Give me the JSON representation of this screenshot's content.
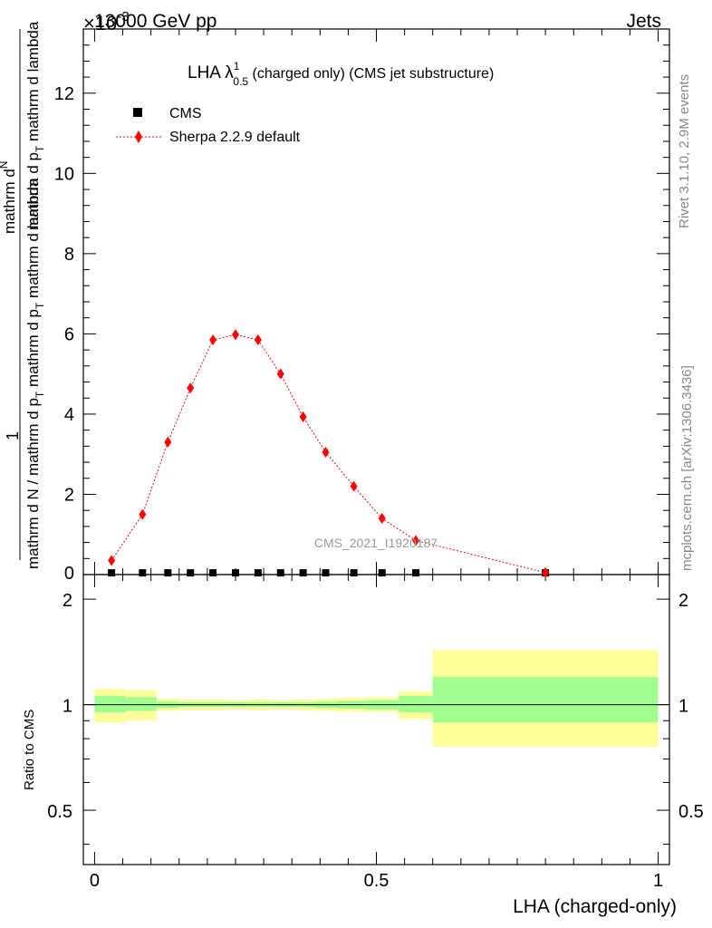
{
  "header": {
    "energy_label": "13000 GeV pp",
    "process_label": "Jets",
    "exponent_label": "×10",
    "exponent_power": "-3"
  },
  "side_labels": {
    "rivet": "Rivet 3.1.10,  2.9M events",
    "mcplots": "mcplots.cern.ch [arXiv:1306.3436]"
  },
  "watermark": "CMS_2021_I1920187",
  "title": {
    "main": "LHA λ",
    "sup": "1",
    "sub": "0.5",
    "rest": " (charged only) (CMS jet substructure)"
  },
  "y_axis_label": {
    "top_numerator": "mathrm d",
    "top_numerator_n": "N",
    "top_den_a": "mathrm d p",
    "top_den_sub": "T",
    "top_den_b": " mathrm d lambda",
    "one": "1",
    "bottom_a": "mathrm d N / mathrm d p",
    "bottom_sub": "T",
    "bottom_b": " mathrm d p",
    "bottom_sub2": "T",
    "bottom_c": " mathrm d lambda"
  },
  "ratio_ylabel": "Ratio to CMS",
  "legend": {
    "cms": "CMS",
    "sherpa": "Sherpa 2.2.9 default"
  },
  "colors": {
    "mc": "#ff0000",
    "band_stat": "#a0ff8f",
    "band_total": "#ffff9a",
    "data": "#000000"
  },
  "chart_data": [
    {
      "type": "scatter",
      "title": "LHA λ^1_0.5 (charged only) (CMS jet substructure)",
      "xlabel": "LHA (charged-only)",
      "ylabel": "1/(dN/dpT) d²N/(dpT dλ)",
      "y_scale_factor": 0.001,
      "xlim": [
        -0.02,
        1.02
      ],
      "ylim": [
        0,
        13.6
      ],
      "yticks": [
        2,
        4,
        6,
        8,
        10,
        12
      ],
      "legend_position": "top-left",
      "series": [
        {
          "name": "CMS",
          "marker": "square",
          "x": [
            0.03,
            0.085,
            0.13,
            0.17,
            0.21,
            0.25,
            0.29,
            0.33,
            0.37,
            0.41,
            0.46,
            0.51,
            0.57,
            0.8
          ],
          "y": [
            0.02,
            0.02,
            0.02,
            0.02,
            0.02,
            0.02,
            0.02,
            0.02,
            0.02,
            0.02,
            0.02,
            0.02,
            0.02,
            0.02
          ]
        },
        {
          "name": "Sherpa 2.2.9 default",
          "marker": "diamond",
          "line": "dotted",
          "x": [
            0.03,
            0.085,
            0.13,
            0.17,
            0.21,
            0.25,
            0.29,
            0.33,
            0.37,
            0.41,
            0.46,
            0.51,
            0.57,
            0.8
          ],
          "y": [
            0.35,
            1.5,
            3.3,
            4.65,
            5.85,
            5.98,
            5.85,
            5.0,
            3.93,
            3.05,
            2.2,
            1.4,
            0.85,
            0.05
          ]
        }
      ]
    },
    {
      "type": "area",
      "ylabel": "Ratio to CMS",
      "xlabel": "LHA (charged-only)",
      "xlim": [
        -0.02,
        1.02
      ],
      "ylim": [
        0.35,
        2.35
      ],
      "xticks": [
        0,
        0.5,
        1
      ],
      "xticklabels": [
        "0",
        "0.5",
        "1"
      ],
      "yticks": [
        0.5,
        1,
        2
      ],
      "yticklabels": [
        "0.5",
        "1",
        "2"
      ],
      "reference_line": 1,
      "bins": [
        {
          "x0": 0.0,
          "x1": 0.055,
          "stat": [
            0.95,
            1.06
          ],
          "total": [
            0.89,
            1.11
          ]
        },
        {
          "x0": 0.055,
          "x1": 0.11,
          "stat": [
            0.96,
            1.05
          ],
          "total": [
            0.9,
            1.1
          ]
        },
        {
          "x0": 0.11,
          "x1": 0.15,
          "stat": [
            0.98,
            1.02
          ],
          "total": [
            0.96,
            1.04
          ]
        },
        {
          "x0": 0.15,
          "x1": 0.19,
          "stat": [
            0.985,
            1.015
          ],
          "total": [
            0.965,
            1.035
          ]
        },
        {
          "x0": 0.19,
          "x1": 0.23,
          "stat": [
            0.985,
            1.015
          ],
          "total": [
            0.965,
            1.035
          ]
        },
        {
          "x0": 0.23,
          "x1": 0.27,
          "stat": [
            0.985,
            1.015
          ],
          "total": [
            0.97,
            1.03
          ]
        },
        {
          "x0": 0.27,
          "x1": 0.31,
          "stat": [
            0.985,
            1.015
          ],
          "total": [
            0.965,
            1.035
          ]
        },
        {
          "x0": 0.31,
          "x1": 0.35,
          "stat": [
            0.985,
            1.015
          ],
          "total": [
            0.97,
            1.03
          ]
        },
        {
          "x0": 0.35,
          "x1": 0.39,
          "stat": [
            0.985,
            1.015
          ],
          "total": [
            0.965,
            1.035
          ]
        },
        {
          "x0": 0.39,
          "x1": 0.43,
          "stat": [
            0.98,
            1.02
          ],
          "total": [
            0.96,
            1.04
          ]
        },
        {
          "x0": 0.43,
          "x1": 0.48,
          "stat": [
            0.975,
            1.025
          ],
          "total": [
            0.955,
            1.045
          ]
        },
        {
          "x0": 0.48,
          "x1": 0.54,
          "stat": [
            0.97,
            1.03
          ],
          "total": [
            0.955,
            1.05
          ]
        },
        {
          "x0": 0.54,
          "x1": 0.6,
          "stat": [
            0.95,
            1.06
          ],
          "total": [
            0.91,
            1.09
          ]
        },
        {
          "x0": 0.6,
          "x1": 1.0,
          "stat": [
            0.89,
            1.2
          ],
          "total": [
            0.76,
            1.43
          ]
        }
      ]
    }
  ]
}
